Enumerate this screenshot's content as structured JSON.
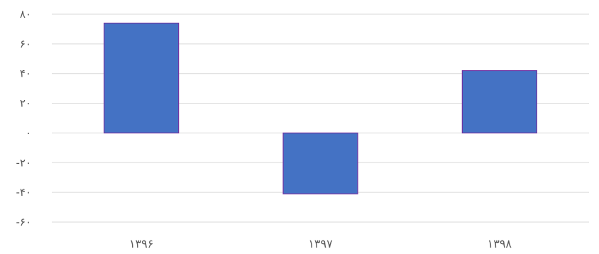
{
  "chart_data": {
    "type": "bar",
    "categories": [
      "۱۳۹۶",
      "۱۳۹۷",
      "۱۳۹۸"
    ],
    "values": [
      74,
      -41,
      42
    ],
    "ylim": [
      -60,
      80
    ],
    "yticks": [
      80,
      60,
      40,
      20,
      0,
      -20,
      -40,
      -60
    ],
    "ytick_labels": [
      "۸۰",
      "۶۰",
      "۴۰",
      "۲۰",
      "۰",
      "-۲۰",
      "-۴۰",
      "-۶۰"
    ],
    "grid": true,
    "legend": "none",
    "colors": {
      "bar_fill": "#4472c4",
      "bar_stroke": "#7030a0",
      "grid": "#d9d9d9",
      "text": "#595959"
    }
  }
}
